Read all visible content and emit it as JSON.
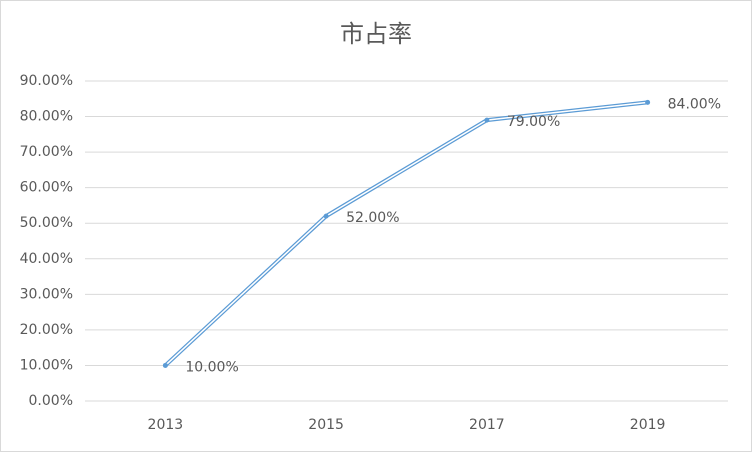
{
  "chart_data": {
    "type": "line",
    "title": "市占率",
    "categories": [
      "2013",
      "2015",
      "2017",
      "2019"
    ],
    "values": [
      10,
      52,
      79,
      84
    ],
    "value_labels": [
      "10.00%",
      "52.00%",
      "79.00%",
      "84.00%"
    ],
    "color": "#5b9bd5",
    "ylim": [
      0,
      90
    ],
    "yticks": [
      {
        "value": 0,
        "label": "0.00%"
      },
      {
        "value": 10,
        "label": "10.00%"
      },
      {
        "value": 20,
        "label": "20.00%"
      },
      {
        "value": 30,
        "label": "30.00%"
      },
      {
        "value": 40,
        "label": "40.00%"
      },
      {
        "value": 50,
        "label": "50.00%"
      },
      {
        "value": 60,
        "label": "60.00%"
      },
      {
        "value": 70,
        "label": "70.00%"
      },
      {
        "value": 80,
        "label": "80.00%"
      },
      {
        "value": 90,
        "label": "90.00%"
      }
    ],
    "grid": true
  }
}
